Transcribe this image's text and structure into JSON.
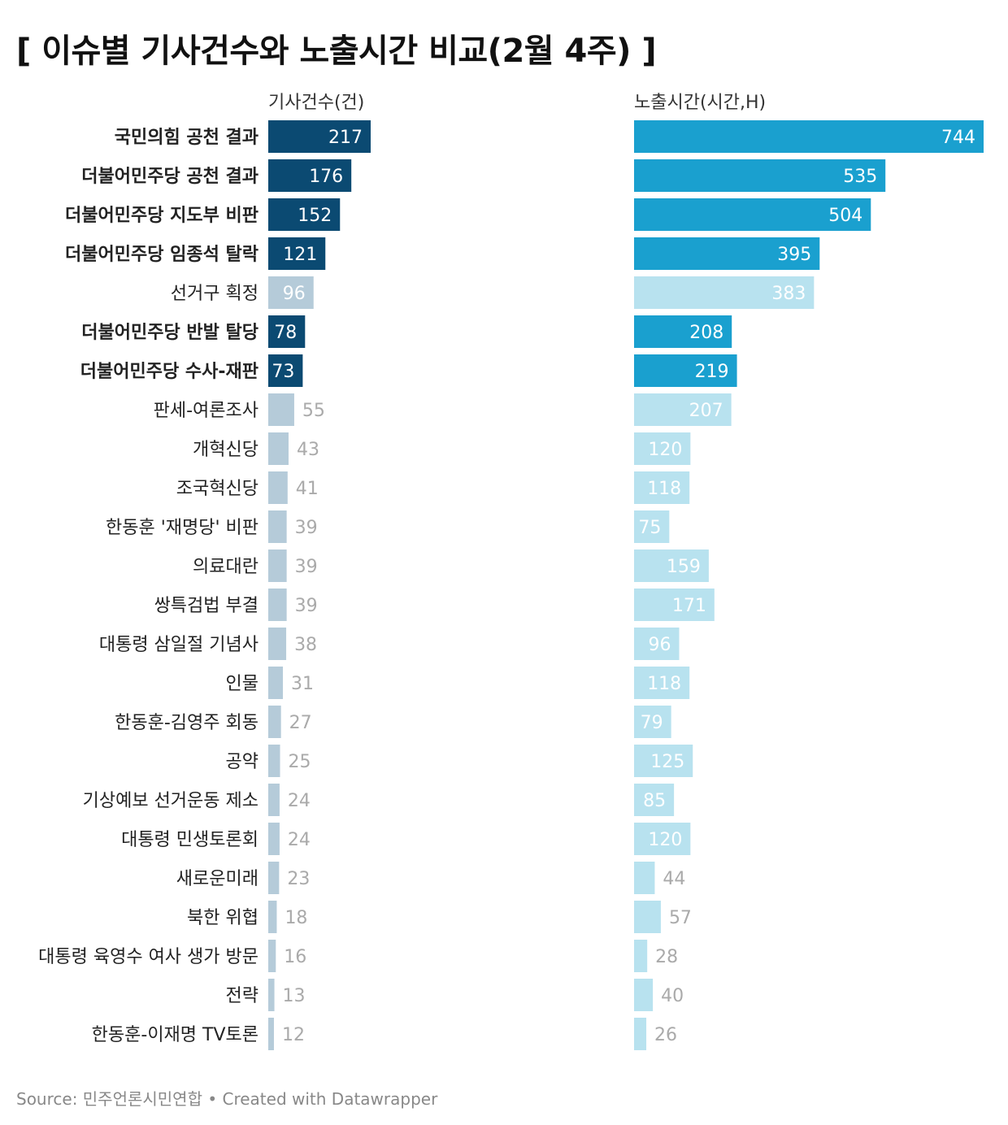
{
  "title": "[ 이슈별 기사건수와 노출시간 비교(2월 4주) ]",
  "footer": "Source: 민주언론시민연합 • Created with Datawrapper",
  "colors": {
    "articles_highlight": "#0b4a72",
    "articles_muted": "#b5cbd9",
    "exposure_highlight": "#1aa0cf",
    "exposure_muted": "#b8e2ef",
    "label_on_bar": "#ffffff",
    "label_outside_highlight": "#222222",
    "label_outside_muted": "#aaaaaa"
  },
  "chart_data": {
    "type": "bar",
    "orientation": "horizontal",
    "categories": [
      "국민의힘 공천 결과",
      "더불어민주당 공천 결과",
      "더불어민주당 지도부 비판",
      "더불어민주당 임종석 탈락",
      "선거구 획정",
      "더불어민주당 반발 탈당",
      "더불어민주당 수사-재판",
      "판세-여론조사",
      "개혁신당",
      "조국혁신당",
      "한동훈 '재명당' 비판",
      "의료대란",
      "쌍특검법 부결",
      "대통령 삼일절 기념사",
      "인물",
      "한동훈-김영주 회동",
      "공약",
      "기상예보 선거운동 제소",
      "대통령 민생토론회",
      "새로운미래",
      "북한 위협",
      "대통령 육영수 여사 생가 방문",
      "전략",
      "한동훈-이재명 TV토론"
    ],
    "highlighted": [
      true,
      true,
      true,
      true,
      false,
      true,
      true,
      false,
      false,
      false,
      false,
      false,
      false,
      false,
      false,
      false,
      false,
      false,
      false,
      false,
      false,
      false,
      false,
      false
    ],
    "series": [
      {
        "name": "기사건수(건)",
        "values": [
          217,
          176,
          152,
          121,
          96,
          78,
          73,
          55,
          43,
          41,
          39,
          39,
          39,
          38,
          31,
          27,
          25,
          24,
          24,
          23,
          18,
          16,
          13,
          12
        ]
      },
      {
        "name": "노출시간(시간,H)",
        "values": [
          744,
          535,
          504,
          395,
          383,
          208,
          219,
          207,
          120,
          118,
          75,
          159,
          171,
          96,
          118,
          79,
          125,
          85,
          120,
          44,
          57,
          28,
          40,
          26
        ]
      }
    ],
    "grid": false,
    "legend": "none"
  }
}
